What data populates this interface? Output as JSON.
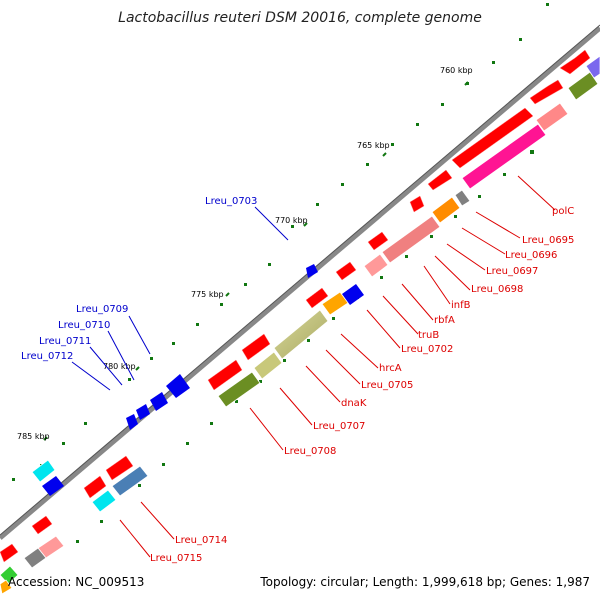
{
  "title": "Lactobacillus reuteri DSM 20016, complete genome",
  "footer": {
    "accession": "Accession: NC_009513",
    "summary": "Topology: circular; Length: 1,999,618 bp; Genes: 1,987"
  },
  "ticks": [
    "760 kbp",
    "765 kbp",
    "770 kbp",
    "775 kbp",
    "780 kbp",
    "785 kbp"
  ],
  "red_labels": [
    "polC",
    "Lreu_0695",
    "Lreu_0696",
    "Lreu_0697",
    "Lreu_0698",
    "infB",
    "rbfA",
    "truB",
    "Lreu_0702",
    "hrcA",
    "Lreu_0705",
    "dnaK",
    "Lreu_0707",
    "Lreu_0708",
    "Lreu_0714",
    "Lreu_0715"
  ],
  "blue_labels": [
    "Lreu_0703",
    "Lreu_0709",
    "Lreu_0710",
    "Lreu_0711",
    "Lreu_0712"
  ],
  "colors": {
    "cds": "#ff0000",
    "cds_reverse": "#0000ee",
    "red_label": "#dd0000",
    "blue_label": "#0000cc",
    "backbone": "#808080",
    "gc_skew": "#118811"
  }
}
